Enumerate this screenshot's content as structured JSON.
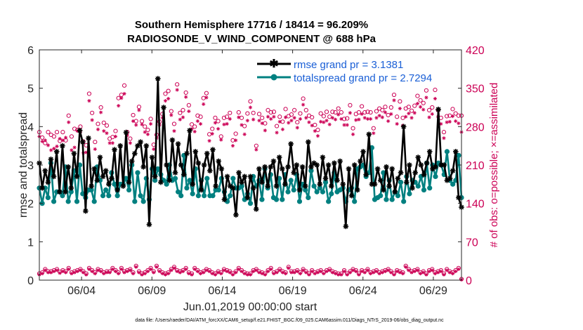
{
  "title_line1": "Southern Hemisphere 17716 / 18414 = 96.209%",
  "title_line2": "RADIOSONDE_V_WIND_COMPONENT @ 688 hPa",
  "footer": "data file: /Users/raeder/DAI/ATM_forcXX/CAM6_setup/f.e21.FHIST_BGC.f09_025.CAM6assim.011/Diags_NTrS_2019-06/obs_diag_output.nc",
  "colors": {
    "rmse": "#000000",
    "spread": "#008080",
    "obs": "#cc0055",
    "legend_text": "#1a5fd6"
  },
  "chart_data": {
    "type": "line",
    "xlabel": "Jun.01,2019 00:00:00 start",
    "ylabel": "rmse and totalspread",
    "ylabel_right": "# of obs: o=possible; ×=assimilated",
    "ylim": [
      0,
      6
    ],
    "ylim_right": [
      0,
      420
    ],
    "y_ticks": [
      "0",
      "1",
      "2",
      "3",
      "4",
      "5",
      "6"
    ],
    "y_ticks_right": [
      "0",
      "70",
      "140",
      "210",
      "280",
      "350",
      "420"
    ],
    "x_range": [
      1,
      31
    ],
    "x_ticks": [
      {
        "x": 4,
        "label": "06/04"
      },
      {
        "x": 9,
        "label": "06/09"
      },
      {
        "x": 14,
        "label": "06/14"
      },
      {
        "x": 19,
        "label": "06/19"
      },
      {
        "x": 24,
        "label": "06/24"
      },
      {
        "x": 29,
        "label": "06/29"
      }
    ],
    "legend": {
      "placement": "top-right",
      "rmse_label": "rmse grand pr = 3.1381",
      "spread_label": "totalspread grand pr = 2.7294"
    },
    "rmse": [
      3.05,
      2.4,
      2.85,
      2.55,
      3.15,
      2.7,
      3.35,
      2.3,
      3.5,
      2.3,
      2.95,
      2.4,
      3.3,
      2.7,
      3.9,
      3.6,
      1.8,
      3.7,
      2.45,
      2.9,
      2.6,
      3.2,
      2.7,
      2.85,
      2.5,
      2.65,
      3.4,
      2.35,
      3.5,
      2.45,
      3.85,
      2.55,
      3.1,
      3.3,
      3.5,
      3.6,
      2.95,
      3.5,
      1.45,
      3.2,
      2.7,
      5.25,
      2.55,
      4.5,
      3.0,
      2.6,
      3.65,
      2.8,
      3.55,
      3.0,
      2.75,
      3.3,
      3.9,
      2.5,
      3.35,
      3.05,
      2.35,
      3.0,
      3.3,
      2.85,
      3.4,
      2.45,
      3.1,
      2.9,
      2.1,
      2.7,
      2.45,
      2.4,
      1.7,
      2.8,
      2.55,
      2.7,
      2.15,
      2.7,
      2.4,
      1.85,
      2.9,
      2.55,
      2.95,
      2.45,
      2.95,
      3.1,
      2.45,
      3.2,
      2.9,
      2.5,
      2.95,
      3.55,
      2.8,
      3.0,
      2.35,
      2.95,
      2.45,
      3.6,
      2.95,
      3.05,
      3.0,
      2.5,
      3.2,
      2.65,
      3.0,
      2.45,
      3.05,
      2.6,
      3.1,
      2.5,
      1.4,
      2.9,
      2.2,
      3.0,
      2.35,
      3.1,
      3.35,
      2.75,
      3.8,
      2.5,
      2.5,
      2.9,
      2.6,
      2.35,
      2.95,
      2.45,
      2.9,
      2.3,
      2.65,
      2.8,
      4.0,
      2.55,
      3.0,
      2.4,
      2.8,
      3.2,
      3.0,
      2.75,
      3.05,
      3.35,
      2.9,
      2.95,
      4.45,
      3.0,
      3.0,
      2.6,
      2.65,
      2.85,
      3.35,
      2.15,
      1.9
    ],
    "spread": [
      2.4,
      2.0,
      2.4,
      2.15,
      3.05,
      2.05,
      2.3,
      2.3,
      2.2,
      2.95,
      2.05,
      2.3,
      2.85,
      2.05,
      3.0,
      2.25,
      2.15,
      2.35,
      2.35,
      2.05,
      2.95,
      2.6,
      2.2,
      2.35,
      2.2,
      2.8,
      2.5,
      2.2,
      2.5,
      2.5,
      2.65,
      2.35,
      3.0,
      2.05,
      2.8,
      2.2,
      2.05,
      2.65,
      2.1,
      2.9,
      2.6,
      2.9,
      2.75,
      2.6,
      2.5,
      3.0,
      2.6,
      2.65,
      2.3,
      2.2,
      3.25,
      2.4,
      2.6,
      2.25,
      2.9,
      2.2,
      2.6,
      2.2,
      2.65,
      2.2,
      2.2,
      2.35,
      2.35,
      2.65,
      2.3,
      2.05,
      2.2,
      2.65,
      2.4,
      2.4,
      2.45,
      2.1,
      2.25,
      2.0,
      2.7,
      2.45,
      2.6,
      2.1,
      2.9,
      2.4,
      2.75,
      2.15,
      2.1,
      2.65,
      2.1,
      2.75,
      2.3,
      2.6,
      2.35,
      2.75,
      2.05,
      2.5,
      2.35,
      2.15,
      2.85,
      2.45,
      2.3,
      2.4,
      2.3,
      2.55,
      2.05,
      2.25,
      2.8,
      2.3,
      2.35,
      2.4,
      2.05,
      2.35,
      2.4,
      2.05,
      2.9,
      2.95,
      3.0,
      2.7,
      2.8,
      3.45,
      2.1,
      2.15,
      2.2,
      2.8,
      2.1,
      2.6,
      2.1,
      2.3,
      2.2,
      2.55,
      2.05,
      2.7,
      2.25,
      2.6,
      2.55,
      2.45,
      2.7,
      2.35,
      3.05,
      2.4,
      3.0,
      2.7,
      3.05,
      3.0,
      2.75,
      3.35,
      2.6,
      2.5,
      2.6,
      3.25,
      2.15
    ],
    "obs_possible": [
      270,
      260,
      250,
      270,
      265,
      262,
      270,
      254,
      270,
      255,
      300,
      262,
      276,
      274,
      280,
      253,
      246,
      340,
      305,
      252,
      285,
      315,
      287,
      282,
      258,
      261,
      272,
      332,
      338,
      355,
      270,
      258,
      301,
      290,
      316,
      290,
      280,
      274,
      294,
      247,
      265,
      289,
      303,
      340,
      345,
      308,
      285,
      357,
      305,
      310,
      342,
      319,
      284,
      280,
      300,
      298,
      332,
      341,
      266,
      276,
      296,
      290,
      262,
      296,
      298,
      305,
      255,
      267,
      306,
      296,
      281,
      304,
      326,
      305,
      245,
      303,
      296,
      286,
      310,
      306,
      307,
      281,
      298,
      289,
      312,
      299,
      302,
      310,
      288,
      304,
      331,
      310,
      300,
      297,
      283,
      274,
      304,
      299,
      307,
      298,
      307,
      306,
      313,
      306,
      294,
      295,
      319,
      277,
      303,
      306,
      317,
      306,
      307,
      306,
      277,
      308,
      313,
      310,
      316,
      301,
      315,
      338,
      298,
      326,
      296,
      313,
      316,
      309,
      318,
      336,
      328,
      323,
      346,
      310,
      315,
      347,
      310,
      296,
      270,
      299,
      300,
      312,
      304,
      300,
      300
    ],
    "obs_assimilated": [
      262,
      253,
      255,
      246,
      237,
      240,
      244,
      258,
      255,
      260,
      288,
      237,
      242,
      272,
      270,
      232,
      233,
      327,
      292,
      239,
      275,
      306,
      272,
      268,
      250,
      250,
      262,
      318,
      332,
      340,
      264,
      250,
      290,
      283,
      310,
      284,
      270,
      266,
      285,
      239,
      259,
      283,
      296,
      327,
      331,
      301,
      272,
      347,
      293,
      297,
      334,
      308,
      276,
      271,
      290,
      285,
      321,
      333,
      254,
      267,
      287,
      276,
      256,
      284,
      285,
      294,
      245,
      255,
      297,
      283,
      266,
      291,
      315,
      293,
      238,
      291,
      286,
      273,
      298,
      294,
      298,
      269,
      289,
      275,
      297,
      287,
      291,
      296,
      278,
      294,
      320,
      296,
      288,
      282,
      272,
      263,
      289,
      288,
      291,
      284,
      296,
      293,
      302,
      294,
      283,
      283,
      305,
      266,
      292,
      293,
      303,
      296,
      294,
      294,
      268,
      296,
      300,
      297,
      306,
      290,
      303,
      328,
      285,
      313,
      282,
      298,
      304,
      296,
      305,
      322,
      316,
      311,
      333,
      297,
      303,
      331,
      298,
      285,
      259,
      288,
      289,
      299,
      290,
      286,
      270
    ],
    "obs_possible_bottom": [
      12,
      14,
      20,
      16,
      16,
      18,
      20,
      15,
      18,
      16,
      22,
      14,
      16,
      18,
      20,
      16,
      12,
      22,
      18,
      14,
      20,
      18,
      14,
      16,
      16,
      22,
      18,
      14,
      22,
      16,
      18,
      20,
      14,
      26,
      16,
      12,
      14,
      18,
      22,
      16,
      26,
      18,
      14,
      12,
      14,
      20,
      24,
      18,
      16,
      18,
      22,
      14,
      12,
      22,
      18,
      14,
      16,
      20,
      18,
      14,
      12,
      16,
      14,
      20,
      18,
      16,
      12,
      16,
      22,
      18,
      14,
      12,
      12,
      18,
      20,
      16,
      14,
      12,
      18,
      22,
      14,
      16,
      20,
      16,
      14,
      24,
      16,
      16,
      18,
      14,
      20,
      16,
      12,
      18,
      14,
      16,
      18,
      14,
      18,
      20,
      16,
      14,
      12,
      12,
      18,
      12,
      16,
      20,
      18,
      12,
      18,
      16,
      20,
      14,
      16,
      18,
      14,
      16,
      18,
      20,
      16,
      12,
      18,
      16,
      14,
      26,
      20,
      16,
      18,
      20,
      14,
      16,
      12,
      18,
      20,
      14,
      16,
      18,
      12,
      20,
      16,
      14,
      18,
      22,
      2
    ],
    "obs_assimilated_bottom": [
      10,
      12,
      18,
      14,
      14,
      16,
      18,
      13,
      16,
      14,
      20,
      12,
      14,
      16,
      18,
      14,
      10,
      20,
      16,
      12,
      18,
      16,
      12,
      14,
      14,
      20,
      16,
      12,
      20,
      14,
      16,
      18,
      12,
      24,
      14,
      10,
      12,
      16,
      20,
      14,
      24,
      16,
      12,
      10,
      12,
      18,
      22,
      16,
      14,
      16,
      20,
      12,
      10,
      20,
      16,
      12,
      14,
      18,
      16,
      12,
      10,
      14,
      12,
      18,
      16,
      14,
      10,
      14,
      20,
      16,
      12,
      10,
      10,
      16,
      18,
      14,
      12,
      10,
      16,
      20,
      12,
      14,
      18,
      14,
      12,
      22,
      14,
      14,
      16,
      12,
      18,
      14,
      10,
      16,
      12,
      14,
      16,
      12,
      16,
      18,
      14,
      12,
      10,
      10,
      16,
      10,
      14,
      18,
      16,
      10,
      16,
      14,
      18,
      12,
      14,
      16,
      12,
      14,
      16,
      18,
      14,
      10,
      16,
      14,
      12,
      24,
      18,
      14,
      16,
      18,
      12,
      14,
      10,
      16,
      18,
      12,
      14,
      16,
      10,
      18,
      14,
      12,
      16,
      20,
      1
    ]
  }
}
